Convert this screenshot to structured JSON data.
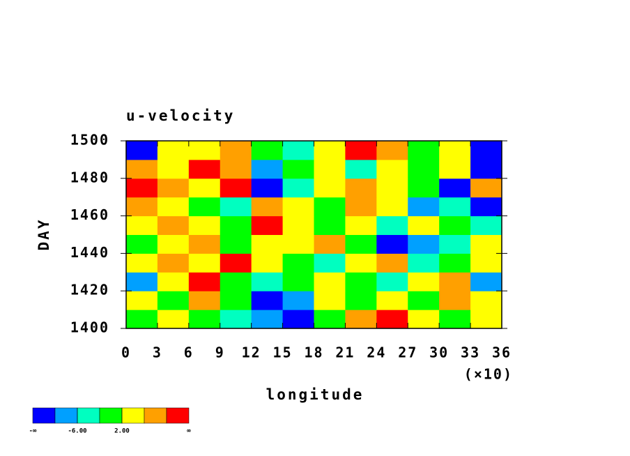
{
  "chart_data": {
    "type": "contour",
    "title": "u-velocity",
    "x_label": "longitude",
    "y_label": "DAY",
    "x_multiplier": "(×10)",
    "xlim": [
      0,
      36
    ],
    "xticks": [
      0,
      3,
      6,
      9,
      12,
      15,
      18,
      21,
      24,
      27,
      30,
      33,
      36
    ],
    "ylim": [
      1400,
      1500
    ],
    "yticks": [
      1400,
      1420,
      1440,
      1460,
      1480,
      1500
    ],
    "z": [
      [
        0,
        4,
        0,
        -4,
        -8,
        -12,
        0,
        8,
        12,
        4,
        0,
        4
      ],
      [
        4,
        0,
        8,
        0,
        -12,
        -8,
        4,
        0,
        4,
        0,
        8,
        4
      ],
      [
        -8,
        4,
        12,
        0,
        -4,
        0,
        4,
        0,
        -4,
        4,
        8,
        -8
      ],
      [
        4,
        8,
        4,
        12,
        4,
        0,
        -4,
        4,
        8,
        -4,
        0,
        4
      ],
      [
        0,
        4,
        8,
        0,
        4,
        4,
        8,
        0,
        -12,
        -8,
        -4,
        4
      ],
      [
        4,
        8,
        4,
        0,
        12,
        4,
        0,
        4,
        -4,
        4,
        0,
        -4
      ],
      [
        8,
        4,
        0,
        -4,
        8,
        4,
        0,
        8,
        4,
        -8,
        -4,
        -12
      ],
      [
        12,
        8,
        4,
        12,
        -12,
        -4,
        4,
        8,
        4,
        0,
        -12,
        8
      ],
      [
        8,
        4,
        12,
        8,
        -8,
        0,
        4,
        -4,
        4,
        0,
        4,
        -12
      ],
      [
        -12,
        4,
        4,
        8,
        0,
        -4,
        4,
        12,
        8,
        0,
        4,
        -12
      ]
    ],
    "colorbar": {
      "colors": [
        "#0000ff",
        "#00a0ff",
        "#00ffc0",
        "#00ff00",
        "#ffff00",
        "#ffa000",
        "#ff0000"
      ],
      "low_label": "-∞",
      "ticks": [
        {
          "value": -6,
          "label": "-6.00"
        },
        {
          "value": 2,
          "label": "2.00"
        }
      ],
      "high_label": "∞"
    }
  }
}
